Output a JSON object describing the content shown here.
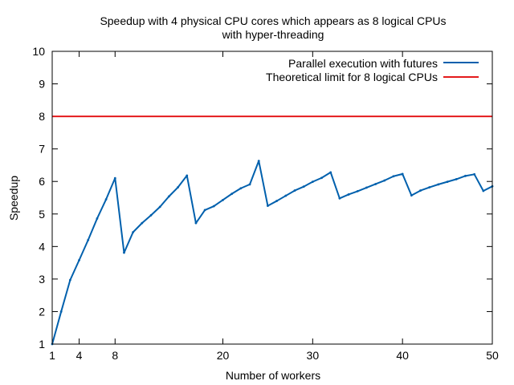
{
  "chart_data": {
    "type": "line",
    "title": "Speedup with 4 physical CPU cores which appears as 8 logical CPUs",
    "subtitle": "with hyper-threading",
    "xlabel": "Number of workers",
    "ylabel": "Speedup",
    "xlim": [
      1,
      50
    ],
    "ylim": [
      1,
      10
    ],
    "xticks": [
      1,
      4,
      8,
      20,
      30,
      40,
      50
    ],
    "yticks": [
      1,
      2,
      3,
      4,
      5,
      6,
      7,
      8,
      9,
      10
    ],
    "grid": false,
    "legend_position": "top-right",
    "series": [
      {
        "name": "Parallel execution with futures",
        "color": "#0060ad",
        "style": "line-with-points",
        "x": [
          1,
          2,
          3,
          4,
          5,
          6,
          7,
          8,
          9,
          10,
          11,
          12,
          13,
          14,
          15,
          16,
          17,
          18,
          19,
          20,
          21,
          22,
          23,
          24,
          25,
          26,
          27,
          28,
          29,
          30,
          31,
          32,
          33,
          34,
          35,
          36,
          37,
          38,
          39,
          40,
          41,
          42,
          43,
          44,
          45,
          46,
          47,
          48,
          49,
          50
        ],
        "y": [
          1.0,
          2.0,
          2.97,
          3.58,
          4.2,
          4.86,
          5.45,
          6.1,
          3.81,
          4.44,
          4.72,
          4.96,
          5.22,
          5.54,
          5.82,
          6.18,
          4.72,
          5.12,
          5.24,
          5.43,
          5.62,
          5.79,
          5.91,
          6.63,
          5.25,
          5.4,
          5.56,
          5.72,
          5.84,
          5.99,
          6.11,
          6.28,
          5.48,
          5.6,
          5.7,
          5.81,
          5.92,
          6.03,
          6.16,
          6.23,
          5.57,
          5.72,
          5.82,
          5.91,
          5.99,
          6.07,
          6.17,
          6.22,
          5.71,
          5.85
        ]
      },
      {
        "name": "Theoretical limit for 8 logical CPUs",
        "color": "#e41a1c",
        "style": "horizontal-line",
        "y": 8
      }
    ]
  }
}
